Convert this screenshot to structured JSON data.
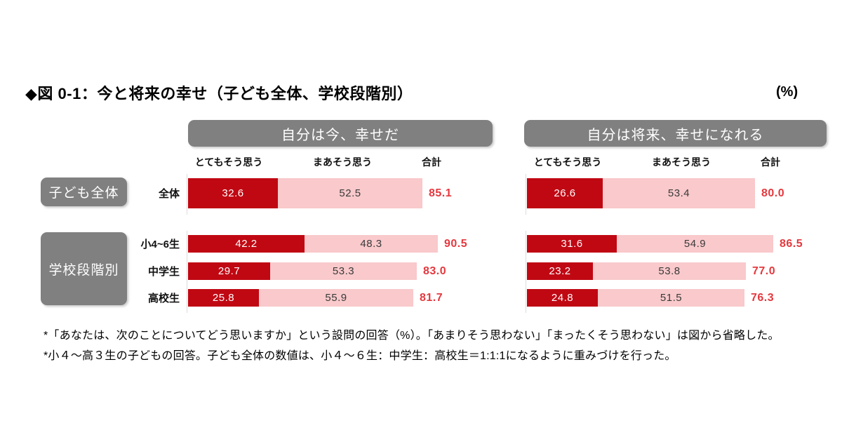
{
  "title": "◆図 0-1：今と将来の幸せ（子ども全体、学校段階別）",
  "unit_label": "(%)",
  "group_labels": {
    "overall": "子ども全体",
    "by_stage": "学校段階別"
  },
  "footnotes": [
    "*「あなたは、次のことについてどう思いますか」という設問の回答（%）。「あまりそう思わない」「まったくそう思わない」は図から省略した。",
    "*小４～高３生の子どもの回答。子ども全体の数値は、小４～６生：中学生：高校生＝1:1:1になるように重みづけを行った。"
  ],
  "colors": {
    "strongly_agree_bar": "#C00813",
    "somewhat_agree_bar": "#F9C9CB",
    "total_text": "#E4383E",
    "header_gray": "#808080",
    "text_black": "#000000"
  },
  "chart_data": {
    "type": "bar",
    "orientation": "horizontal",
    "unit": "%",
    "value_range": [
      0,
      100
    ],
    "grid": false,
    "categories": [
      "全体",
      "小4~6生",
      "中学生",
      "高校生"
    ],
    "category_groups": [
      {
        "label": "子ども全体",
        "rows": [
          0
        ]
      },
      {
        "label": "学校段階別",
        "rows": [
          1,
          2,
          3
        ]
      }
    ],
    "series_labels": [
      "とてもそう思う",
      "まあそう思う"
    ],
    "total_label": "合計",
    "panels": [
      {
        "title": "自分は今、幸せだ",
        "series": [
          {
            "name": "とてもそう思う",
            "values": [
              32.6,
              42.2,
              29.7,
              25.8
            ]
          },
          {
            "name": "まあそう思う",
            "values": [
              52.5,
              48.3,
              53.3,
              55.9
            ]
          }
        ],
        "totals": [
          85.1,
          90.5,
          83.0,
          81.7
        ]
      },
      {
        "title": "自分は将来、幸せになれる",
        "series": [
          {
            "name": "とてもそう思う",
            "values": [
              26.6,
              31.6,
              23.2,
              24.8
            ]
          },
          {
            "name": "まあそう思う",
            "values": [
              53.4,
              54.9,
              53.8,
              51.5
            ]
          }
        ],
        "totals": [
          80.0,
          86.5,
          77.0,
          76.3
        ]
      }
    ]
  }
}
